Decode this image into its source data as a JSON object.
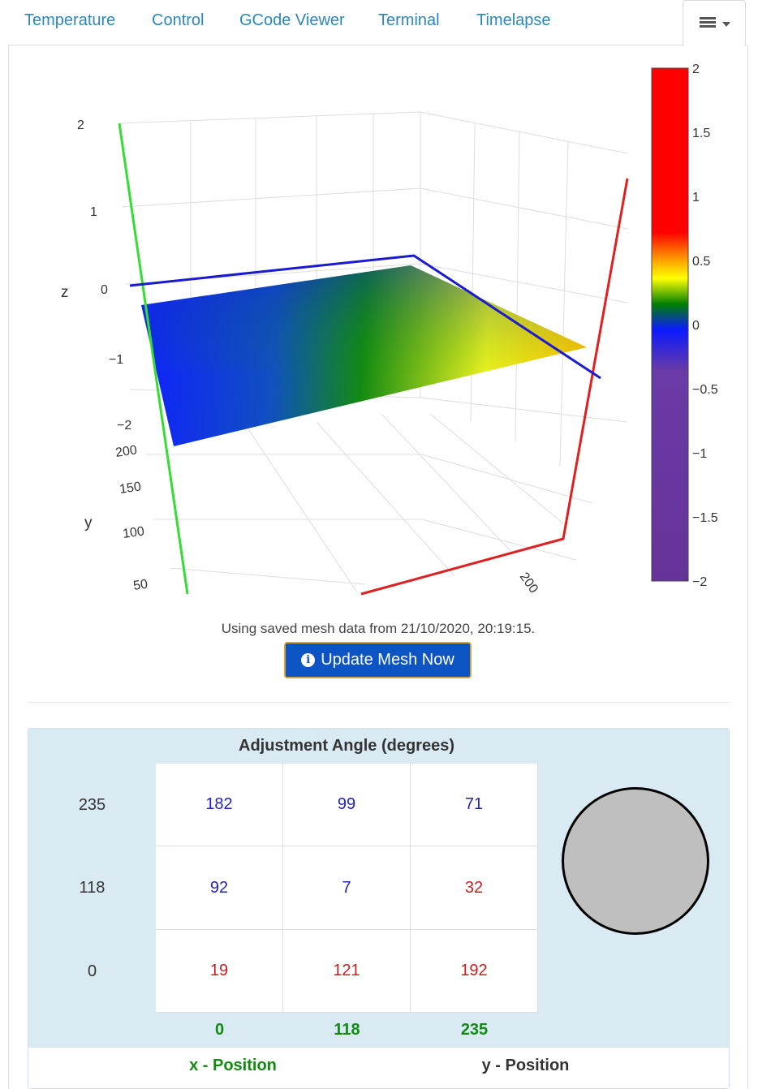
{
  "tabs": [
    "Temperature",
    "Control",
    "GCode Viewer",
    "Terminal",
    "Timelapse"
  ],
  "plot": {
    "z_label": "z",
    "y_label": "y",
    "z_ticks": [
      "2",
      "1",
      "0",
      "−1",
      "−2"
    ],
    "y_ticks": [
      "200",
      "150",
      "100",
      "50"
    ],
    "x_ticks": [
      "200"
    ],
    "colorbar_ticks": [
      "2",
      "1.5",
      "1",
      "0.5",
      "0",
      "−0.5",
      "−1",
      "−1.5",
      "−2"
    ]
  },
  "mesh_note": "Using saved mesh data from 21/10/2020, 20:19:15.",
  "update_button": "Update Mesh Now",
  "table": {
    "title": "Adjustment Angle (degrees)",
    "row_labels": [
      "235",
      "118",
      "0"
    ],
    "values": [
      [
        "182",
        "99",
        "71"
      ],
      [
        "92",
        "7",
        "32"
      ],
      [
        "19",
        "121",
        "192"
      ]
    ],
    "value_colors": [
      [
        "blue",
        "blue",
        "blue"
      ],
      [
        "blue",
        "blue",
        "red"
      ],
      [
        "red",
        "red",
        "red"
      ]
    ],
    "col_labels": [
      "0",
      "118",
      "235"
    ],
    "x_position_label": "x - Position",
    "y_position_label": "y - Position"
  },
  "colors": {
    "tab_link": "#2a88bd",
    "button": "#0c54c4",
    "button_border": "#d6a33a",
    "header_bg": "#d9eaf3",
    "axis_x": "#e02020",
    "axis_y": "#33dd33",
    "axis_plane": "#1a1ad0"
  }
}
